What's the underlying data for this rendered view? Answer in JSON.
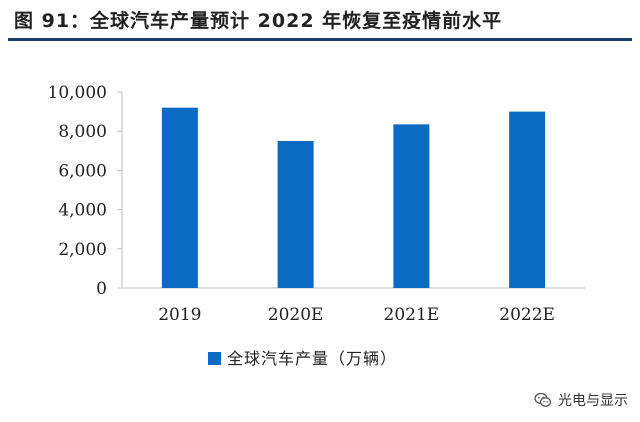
{
  "figure": {
    "title": "图 91：全球汽车产量预计 2022 年恢复至疫情前水平"
  },
  "chart_data": {
    "type": "bar",
    "categories": [
      "2019",
      "2020E",
      "2021E",
      "2022E"
    ],
    "series": [
      {
        "name": "全球汽车产量（万辆）",
        "values": [
          9200,
          7500,
          8350,
          9000
        ],
        "color": "#0b6bc2"
      }
    ],
    "ylim": [
      0,
      10000
    ],
    "yticks": [
      0,
      2000,
      4000,
      6000,
      8000,
      10000
    ],
    "ytick_labels": [
      "0",
      "2,000",
      "4,000",
      "6,000",
      "8,000",
      "10,000"
    ],
    "grid": false,
    "legend_position": "bottom-left"
  },
  "watermark": {
    "text": "光电与显示",
    "icon": "wechat-icon"
  }
}
